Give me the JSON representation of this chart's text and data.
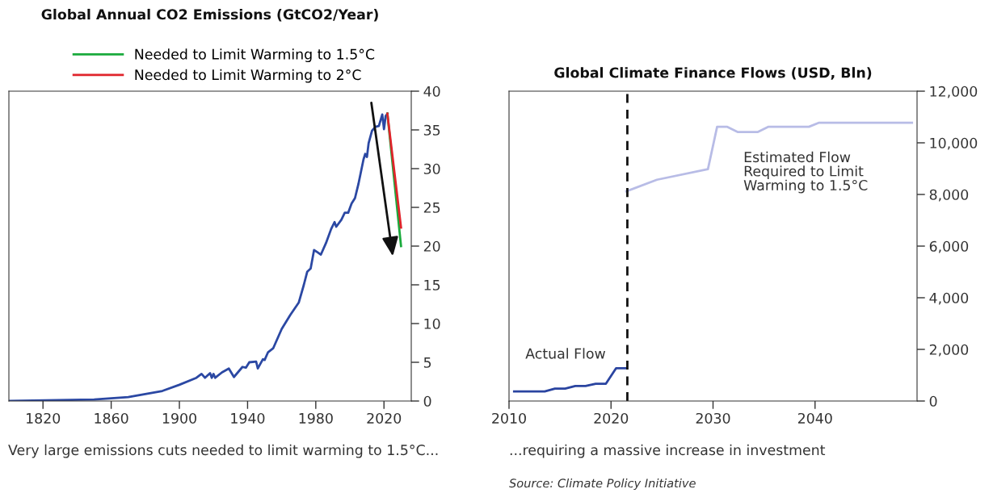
{
  "chart_data": [
    {
      "type": "line",
      "title": "Global Annual CO2 Emissions (GtCO2/Year)",
      "xlim": [
        1800,
        2036
      ],
      "xticks": [
        1820,
        1860,
        1900,
        1940,
        1980,
        2020
      ],
      "ylim": [
        0,
        40
      ],
      "yticks": [
        0,
        5,
        10,
        15,
        20,
        25,
        30,
        35,
        40
      ],
      "grid": false,
      "legend": "top left",
      "marker": "none",
      "line_style": "solid",
      "series": [
        {
          "color": "#2b48a3",
          "x": [
            1800,
            1850,
            1870,
            1880,
            1890,
            1900,
            1910,
            1913,
            1915,
            1918,
            1919,
            1920,
            1921,
            1925,
            1929,
            1932,
            1937,
            1939,
            1941,
            1945,
            1946,
            1949,
            1950,
            1952,
            1955,
            1960,
            1965,
            1970,
            1973,
            1975,
            1977,
            1979,
            1981,
            1983,
            1986,
            1989,
            1991,
            1992,
            1995,
            1997,
            1999,
            2001,
            2003,
            2005,
            2008,
            2009,
            2010,
            2011,
            2013,
            2015,
            2017,
            2019,
            2020,
            2021,
            2022
          ],
          "values": [
            0,
            0.2,
            0.5,
            0.9,
            1.3,
            2.1,
            3.0,
            3.5,
            3.0,
            3.6,
            3.0,
            3.5,
            3.0,
            3.7,
            4.2,
            3.1,
            4.4,
            4.3,
            5.0,
            5.1,
            4.2,
            5.4,
            5.3,
            6.3,
            6.8,
            9.3,
            11.1,
            12.7,
            15.0,
            16.7,
            17.1,
            19.5,
            19.2,
            18.9,
            20.4,
            22.2,
            23.1,
            22.5,
            23.4,
            24.3,
            24.3,
            25.5,
            26.2,
            28.0,
            31.2,
            31.9,
            31.5,
            33.3,
            34.9,
            35.4,
            35.5,
            37.0,
            35.1,
            36.8,
            37.1
          ]
        },
        {
          "name": "Needed to Limit Warming to 1.5°C",
          "color": "#1aaa3c",
          "x": [
            2022,
            2030
          ],
          "values": [
            37.1,
            20.0
          ]
        },
        {
          "name": "Needed to Limit Warming to 2°C",
          "color": "#e0242b",
          "x": [
            2022,
            2030
          ],
          "values": [
            37.1,
            22.4
          ]
        }
      ],
      "annotations": [
        "Very large emissions cuts needed to limit warming to 1.5°C..."
      ]
    },
    {
      "type": "line",
      "title": "Global Climate Finance Flows (USD, Bln)",
      "xlim": [
        2010,
        2050
      ],
      "xticks": [
        2010,
        2020,
        2030,
        2040
      ],
      "ylim": [
        0,
        12000
      ],
      "yticks": [
        0,
        {
          "value": 2000,
          "label": "2,000"
        },
        {
          "value": 4000,
          "label": "4,000"
        },
        {
          "value": 6000,
          "label": "6,000"
        },
        {
          "value": 8000,
          "label": "8,000"
        },
        {
          "value": 10000,
          "label": "10,000"
        },
        {
          "value": 12000,
          "label": "12,000"
        }
      ],
      "grid": false,
      "legend": false,
      "marker": "none",
      "line_style": "solid",
      "series": [
        {
          "name": "Actual Flow",
          "color": "#2a44a0",
          "x": [
            2010.5,
            2013.5,
            2014.5,
            2015.5,
            2016.5,
            2017.5,
            2018.5,
            2019.5,
            2020.5,
            2021.5
          ],
          "values": [
            370,
            370,
            480,
            480,
            580,
            580,
            670,
            670,
            1270,
            1270
          ]
        },
        {
          "name": "Estimated Flow\nRequired to Limit\nWarming to 1.5°C",
          "color": "#b8bce6",
          "x": [
            2021.5,
            2024.5,
            2029.5,
            2030.4,
            2031.4,
            2032.4,
            2034.4,
            2035.4,
            2039.4,
            2040.4,
            2049.5
          ],
          "values": [
            8120,
            8570,
            8980,
            10620,
            10620,
            10420,
            10420,
            10620,
            10620,
            10780,
            10780
          ]
        }
      ],
      "ref_lines": [
        {
          "axis": "x",
          "value": 2021.6,
          "color": "#111111",
          "line_style": "dashed"
        }
      ],
      "annotations": [
        "...requiring a massive increase in investment",
        "Source: Climate Policy Initiative"
      ]
    }
  ]
}
